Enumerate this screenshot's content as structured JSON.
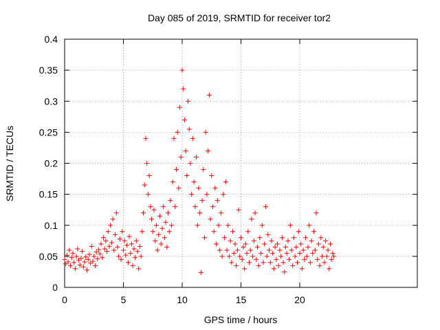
{
  "chart_data": {
    "type": "scatter",
    "title": "Day 085 of 2019, SRMTID for receiver tor2",
    "xlabel": "GPS time / hours",
    "ylabel": "SRMTID / TECUs",
    "xlim": [
      0,
      30
    ],
    "ylim": [
      0,
      0.4
    ],
    "xticks": [
      0,
      5,
      10,
      15,
      20
    ],
    "xtick_labels": [
      "0",
      "5",
      "10",
      "15",
      "20"
    ],
    "yticks": [
      0,
      0.05,
      0.1,
      0.15,
      0.2,
      0.25,
      0.3,
      0.35,
      0.4
    ],
    "ytick_labels": [
      "0",
      "0.05",
      "0.1",
      "0.15",
      "0.2",
      "0.25",
      "0.3",
      "0.35",
      "0.4"
    ],
    "grid": true,
    "marker": "plus",
    "color": "#ff0000",
    "series": [
      {
        "name": "SRMTID",
        "points": [
          [
            0.0,
            0.045
          ],
          [
            0.1,
            0.038
          ],
          [
            0.2,
            0.052
          ],
          [
            0.3,
            0.041
          ],
          [
            0.4,
            0.06
          ],
          [
            0.5,
            0.035
          ],
          [
            0.6,
            0.048
          ],
          [
            0.7,
            0.055
          ],
          [
            0.8,
            0.04
          ],
          [
            0.9,
            0.03
          ],
          [
            1.0,
            0.05
          ],
          [
            1.1,
            0.062
          ],
          [
            1.2,
            0.044
          ],
          [
            1.3,
            0.036
          ],
          [
            1.4,
            0.047
          ],
          [
            1.5,
            0.058
          ],
          [
            1.6,
            0.033
          ],
          [
            1.7,
            0.041
          ],
          [
            1.8,
            0.049
          ],
          [
            1.9,
            0.028
          ],
          [
            2.0,
            0.045
          ],
          [
            2.1,
            0.053
          ],
          [
            2.2,
            0.039
          ],
          [
            2.3,
            0.066
          ],
          [
            2.4,
            0.042
          ],
          [
            2.5,
            0.05
          ],
          [
            2.6,
            0.035
          ],
          [
            2.7,
            0.057
          ],
          [
            2.8,
            0.046
          ],
          [
            2.9,
            0.061
          ],
          [
            3.0,
            0.054
          ],
          [
            3.1,
            0.07
          ],
          [
            3.2,
            0.048
          ],
          [
            3.3,
            0.08
          ],
          [
            3.4,
            0.062
          ],
          [
            3.5,
            0.075
          ],
          [
            3.6,
            0.058
          ],
          [
            3.7,
            0.09
          ],
          [
            3.8,
            0.066
          ],
          [
            3.9,
            0.1
          ],
          [
            4.0,
            0.072
          ],
          [
            4.1,
            0.11
          ],
          [
            4.2,
            0.06
          ],
          [
            4.3,
            0.085
          ],
          [
            4.4,
            0.12
          ],
          [
            4.5,
            0.065
          ],
          [
            4.6,
            0.05
          ],
          [
            4.7,
            0.078
          ],
          [
            4.8,
            0.045
          ],
          [
            4.9,
            0.09
          ],
          [
            5.0,
            0.06
          ],
          [
            5.1,
            0.075
          ],
          [
            5.2,
            0.052
          ],
          [
            5.3,
            0.068
          ],
          [
            5.4,
            0.04
          ],
          [
            5.5,
            0.082
          ],
          [
            5.6,
            0.055
          ],
          [
            5.7,
            0.07
          ],
          [
            5.8,
            0.035
          ],
          [
            5.9,
            0.062
          ],
          [
            6.0,
            0.048
          ],
          [
            6.1,
            0.075
          ],
          [
            6.2,
            0.058
          ],
          [
            6.3,
            0.03
          ],
          [
            6.4,
            0.066
          ],
          [
            6.5,
            0.05
          ],
          [
            6.6,
            0.09
          ],
          [
            6.7,
            0.12
          ],
          [
            6.8,
            0.165
          ],
          [
            6.9,
            0.24
          ],
          [
            7.0,
            0.2
          ],
          [
            7.1,
            0.15
          ],
          [
            7.2,
            0.18
          ],
          [
            7.3,
            0.13
          ],
          [
            7.4,
            0.11
          ],
          [
            7.5,
            0.09
          ],
          [
            7.6,
            0.125
          ],
          [
            7.7,
            0.075
          ],
          [
            7.8,
            0.1
          ],
          [
            7.9,
            0.06
          ],
          [
            8.0,
            0.085
          ],
          [
            8.1,
            0.115
          ],
          [
            8.2,
            0.07
          ],
          [
            8.3,
            0.095
          ],
          [
            8.4,
            0.13
          ],
          [
            8.5,
            0.08
          ],
          [
            8.6,
            0.105
          ],
          [
            8.7,
            0.065
          ],
          [
            8.8,
            0.12
          ],
          [
            8.9,
            0.09
          ],
          [
            9.0,
            0.14
          ],
          [
            9.1,
            0.1
          ],
          [
            9.2,
            0.17
          ],
          [
            9.3,
            0.24
          ],
          [
            9.4,
            0.13
          ],
          [
            9.5,
            0.19
          ],
          [
            9.6,
            0.25
          ],
          [
            9.7,
            0.16
          ],
          [
            9.8,
            0.29
          ],
          [
            9.9,
            0.21
          ],
          [
            10.0,
            0.35
          ],
          [
            10.1,
            0.32
          ],
          [
            10.2,
            0.27
          ],
          [
            10.3,
            0.22
          ],
          [
            10.4,
            0.18
          ],
          [
            10.5,
            0.3
          ],
          [
            10.6,
            0.255
          ],
          [
            10.7,
            0.2
          ],
          [
            10.8,
            0.15
          ],
          [
            10.9,
            0.24
          ],
          [
            11.0,
            0.17
          ],
          [
            11.1,
            0.13
          ],
          [
            11.2,
            0.21
          ],
          [
            11.3,
            0.1
          ],
          [
            11.4,
            0.16
          ],
          [
            11.5,
            0.12
          ],
          [
            11.6,
            0.024
          ],
          [
            11.7,
            0.14
          ],
          [
            11.8,
            0.19
          ],
          [
            11.9,
            0.08
          ],
          [
            12.0,
            0.25
          ],
          [
            12.1,
            0.15
          ],
          [
            12.2,
            0.22
          ],
          [
            12.3,
            0.31
          ],
          [
            12.4,
            0.11
          ],
          [
            12.5,
            0.18
          ],
          [
            12.6,
            0.13
          ],
          [
            12.7,
            0.09
          ],
          [
            12.8,
            0.16
          ],
          [
            12.9,
            0.07
          ],
          [
            13.0,
            0.14
          ],
          [
            13.1,
            0.1
          ],
          [
            13.2,
            0.06
          ],
          [
            13.3,
            0.12
          ],
          [
            13.4,
            0.05
          ],
          [
            13.5,
            0.15
          ],
          [
            13.6,
            0.08
          ],
          [
            13.7,
            0.17
          ],
          [
            13.8,
            0.06
          ],
          [
            13.9,
            0.1
          ],
          [
            14.0,
            0.05
          ],
          [
            14.1,
            0.075
          ],
          [
            14.2,
            0.04
          ],
          [
            14.3,
            0.09
          ],
          [
            14.4,
            0.055
          ],
          [
            14.5,
            0.07
          ],
          [
            14.6,
            0.035
          ],
          [
            14.7,
            0.06
          ],
          [
            14.8,
            0.125
          ],
          [
            14.9,
            0.05
          ],
          [
            15.0,
            0.08
          ],
          [
            15.1,
            0.045
          ],
          [
            15.2,
            0.065
          ],
          [
            15.3,
            0.03
          ],
          [
            15.4,
            0.07
          ],
          [
            15.5,
            0.055
          ],
          [
            15.6,
            0.09
          ],
          [
            15.7,
            0.04
          ],
          [
            15.8,
            0.06
          ],
          [
            15.9,
            0.11
          ],
          [
            16.0,
            0.05
          ],
          [
            16.1,
            0.075
          ],
          [
            16.2,
            0.12
          ],
          [
            16.3,
            0.045
          ],
          [
            16.4,
            0.065
          ],
          [
            16.5,
            0.035
          ],
          [
            16.6,
            0.08
          ],
          [
            16.7,
            0.055
          ],
          [
            16.8,
            0.1
          ],
          [
            16.9,
            0.04
          ],
          [
            17.0,
            0.07
          ],
          [
            17.1,
            0.13
          ],
          [
            17.2,
            0.05
          ],
          [
            17.3,
            0.085
          ],
          [
            17.4,
            0.06
          ],
          [
            17.5,
            0.04
          ],
          [
            17.6,
            0.075
          ],
          [
            17.7,
            0.055
          ],
          [
            17.8,
            0.03
          ],
          [
            17.9,
            0.065
          ],
          [
            18.0,
            0.045
          ],
          [
            18.1,
            0.07
          ],
          [
            18.2,
            0.035
          ],
          [
            18.3,
            0.06
          ],
          [
            18.4,
            0.05
          ],
          [
            18.5,
            0.08
          ],
          [
            18.6,
            0.04
          ],
          [
            18.7,
            0.025
          ],
          [
            18.8,
            0.065
          ],
          [
            18.9,
            0.055
          ],
          [
            19.0,
            0.075
          ],
          [
            19.1,
            0.045
          ],
          [
            19.2,
            0.1
          ],
          [
            19.3,
            0.06
          ],
          [
            19.4,
            0.035
          ],
          [
            19.5,
            0.08
          ],
          [
            19.6,
            0.05
          ],
          [
            19.7,
            0.065
          ],
          [
            19.8,
            0.04
          ],
          [
            19.9,
            0.09
          ],
          [
            20.0,
            0.055
          ],
          [
            20.1,
            0.07
          ],
          [
            20.2,
            0.03
          ],
          [
            20.3,
            0.06
          ],
          [
            20.4,
            0.045
          ],
          [
            20.5,
            0.08
          ],
          [
            20.6,
            0.05
          ],
          [
            20.7,
            0.065
          ],
          [
            20.8,
            0.1
          ],
          [
            20.9,
            0.04
          ],
          [
            21.0,
            0.075
          ],
          [
            21.1,
            0.055
          ],
          [
            21.2,
            0.09
          ],
          [
            21.3,
            0.06
          ],
          [
            21.4,
            0.12
          ],
          [
            21.5,
            0.045
          ],
          [
            21.6,
            0.07
          ],
          [
            21.7,
            0.035
          ],
          [
            21.8,
            0.08
          ],
          [
            21.9,
            0.05
          ],
          [
            22.0,
            0.065
          ],
          [
            22.1,
            0.04
          ],
          [
            22.2,
            0.075
          ],
          [
            22.3,
            0.05
          ],
          [
            22.4,
            0.06
          ],
          [
            22.5,
            0.03
          ],
          [
            22.6,
            0.07
          ],
          [
            22.7,
            0.045
          ],
          [
            22.8,
            0.055
          ],
          [
            22.9,
            0.05
          ]
        ]
      }
    ]
  }
}
